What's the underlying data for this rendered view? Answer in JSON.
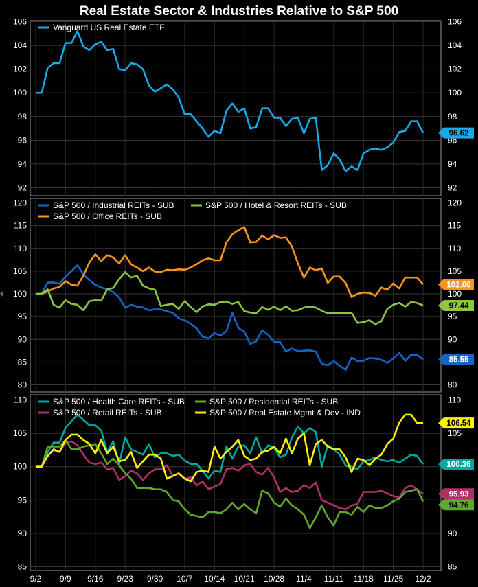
{
  "title": "Real Estate Sector & Industries Relative to S&P 500",
  "chart_data": {
    "type": "line",
    "x_ticks": [
      "9/2",
      "9/9",
      "9/16",
      "9/23",
      "9/30",
      "10/7",
      "10/14",
      "10/21",
      "10/28",
      "11/4",
      "11/11",
      "11/18",
      "11/25",
      "12/2"
    ],
    "panels": [
      {
        "ylim": [
          91.5,
          106.3
        ],
        "y_ticks": [
          92,
          94,
          96,
          98,
          100,
          102,
          104,
          106
        ],
        "grid": true,
        "legend": "top-left",
        "series": [
          {
            "name": "Vanguard US  Real Estate ETF",
            "color": "#19a8e8",
            "last_label": "96.62",
            "values": [
              100.0,
              100.0,
              102.1,
              102.5,
              102.5,
              104.2,
              104.2,
              105.2,
              103.9,
              103.6,
              104.1,
              104.3,
              103.6,
              103.7,
              102.0,
              101.9,
              102.5,
              102.4,
              102.0,
              100.6,
              100.1,
              100.4,
              100.7,
              100.3,
              99.6,
              98.2,
              98.2,
              97.6,
              97.0,
              96.3,
              96.8,
              96.6,
              98.5,
              99.1,
              98.4,
              98.7,
              97.0,
              97.1,
              98.7,
              98.7,
              97.9,
              97.9,
              97.2,
              97.8,
              97.9,
              96.6,
              97.8,
              97.9,
              93.5,
              93.9,
              94.9,
              94.4,
              93.4,
              93.8,
              93.5,
              94.9,
              95.2,
              95.3,
              95.2,
              95.4,
              95.8,
              96.7,
              96.8,
              97.6,
              97.6,
              96.62
            ]
          }
        ]
      },
      {
        "ylim": [
          79,
          121
        ],
        "y_ticks": [
          80,
          85,
          90,
          95,
          100,
          105,
          110,
          115,
          120
        ],
        "grid": true,
        "legend": "top-left",
        "series": [
          {
            "name": "S&P 500 / Industrial REITs - SUB",
            "color": "#1565c8",
            "last_label": "85.55",
            "values": [
              100.0,
              100.0,
              102.5,
              102.5,
              102.2,
              103.8,
              105.0,
              106.3,
              104.3,
              103.0,
              102.0,
              101.4,
              101.0,
              100.4,
              99.2,
              97.0,
              97.6,
              97.2,
              97.0,
              96.4,
              96.6,
              96.6,
              96.2,
              95.8,
              94.6,
              94.2,
              93.4,
              92.4,
              90.6,
              90.2,
              91.4,
              90.8,
              91.8,
              95.8,
              92.5,
              91.7,
              89.0,
              89.6,
              92.0,
              91.0,
              89.4,
              89.4,
              87.3,
              88.0,
              87.4,
              87.5,
              87.6,
              87.3,
              84.6,
              84.3,
              85.2,
              84.2,
              83.3,
              86.0,
              85.2,
              85.3,
              85.9,
              85.8,
              85.5,
              84.8,
              85.8,
              87.0,
              85.3,
              86.6,
              86.6,
              85.55
            ]
          },
          {
            "name": "S&P 500 / Office REITs - SUB",
            "color": "#f7941d",
            "last_label": "102.06",
            "values": [
              100.0,
              100.0,
              100.5,
              101.2,
              101.5,
              102.8,
              102.0,
              101.8,
              104.0,
              106.9,
              108.7,
              107.2,
              108.5,
              108.0,
              106.7,
              108.5,
              106.5,
              105.8,
              105.0,
              105.8,
              104.9,
              104.8,
              105.3,
              105.2,
              105.4,
              105.3,
              105.8,
              106.5,
              107.4,
              107.8,
              107.4,
              107.4,
              111.3,
              113.1,
              114.0,
              114.7,
              111.3,
              111.4,
              112.8,
              112.0,
              112.9,
              112.3,
              112.4,
              110.4,
              106.7,
              103.6,
              105.8,
              105.2,
              105.6,
              102.4,
              103.8,
              103.8,
              102.4,
              99.3,
              100.0,
              100.3,
              100.2,
              99.6,
              101.4,
              100.9,
              102.3,
              101.2,
              103.6,
              103.6,
              103.6,
              102.06
            ]
          },
          {
            "name": "S&P 500 / Hotel & Resort REITs - SUB",
            "color": "#8dc63f",
            "last_label": "97.44",
            "values": [
              100.0,
              100.0,
              101.0,
              97.6,
              97.0,
              98.6,
              97.8,
              97.6,
              96.4,
              98.4,
              98.6,
              98.5,
              101.0,
              101.3,
              103.2,
              104.8,
              103.6,
              104.0,
              101.8,
              101.2,
              100.9,
              97.3,
              97.6,
              97.8,
              96.7,
              98.4,
              97.1,
              96.0,
              97.2,
              97.7,
              97.6,
              98.2,
              98.3,
              97.8,
              98.2,
              96.2,
              95.9,
              95.7,
              97.1,
              96.5,
              97.2,
              96.4,
              97.3,
              96.3,
              96.4,
              97.0,
              97.2,
              97.0,
              96.3,
              95.7,
              95.8,
              95.8,
              95.8,
              95.8,
              93.6,
              93.8,
              94.2,
              93.3,
              94.0,
              96.7,
              97.6,
              98.0,
              97.2,
              98.2,
              98.0,
              97.44
            ]
          }
        ]
      },
      {
        "ylim": [
          84,
          111
        ],
        "y_ticks": [
          85,
          90,
          95,
          100,
          105,
          110
        ],
        "grid": true,
        "legend": "top-left",
        "series": [
          {
            "name": "S&P 500 / Health Care REITs - SUB",
            "color": "#00a99d",
            "last_label": "100.36",
            "values": [
              100.0,
              100.0,
              102.2,
              103.6,
              103.6,
              105.8,
              106.8,
              107.8,
              107.0,
              106.2,
              106.2,
              105.4,
              102.2,
              103.8,
              100.4,
              104.4,
              102.6,
              102.2,
              101.8,
              103.4,
              101.4,
              102.0,
              102.0,
              101.6,
              101.8,
              100.9,
              100.4,
              100.4,
              99.4,
              98.2,
              99.4,
              99.2,
              103.0,
              101.2,
              103.0,
              103.2,
              102.0,
              104.4,
              102.0,
              103.2,
              102.8,
              101.4,
              101.8,
              104.4,
              106.0,
              105.0,
              105.8,
              105.2,
              100.0,
              103.2,
              102.6,
              101.8,
              100.2,
              100.0,
              99.6,
              100.8,
              101.0,
              101.4,
              101.0,
              100.8,
              101.0,
              100.6,
              101.2,
              101.8,
              101.6,
              100.36
            ]
          },
          {
            "name": "S&P 500 / Retail REITs - SUB",
            "color": "#b0306a",
            "last_label": "95.93",
            "values": [
              100.0,
              100.0,
              101.6,
              102.4,
              102.2,
              103.6,
              103.8,
              103.2,
              101.8,
              100.6,
              100.4,
              100.6,
              99.6,
              99.8,
              98.0,
              98.6,
              99.4,
              99.0,
              98.0,
              99.0,
              99.6,
              99.6,
              100.2,
              98.6,
              99.0,
              98.2,
              98.4,
              97.2,
              97.8,
              96.6,
              97.0,
              97.4,
              99.6,
              99.8,
              99.4,
              100.2,
              100.4,
              99.2,
              98.8,
              99.8,
              98.4,
              96.2,
              96.8,
              96.2,
              96.4,
              97.2,
              96.8,
              97.6,
              95.0,
              94.6,
              94.2,
              93.8,
              93.6,
              94.2,
              94.4,
              96.2,
              96.2,
              96.2,
              96.4,
              96.0,
              95.6,
              95.4,
              96.8,
              97.2,
              96.6,
              95.93
            ]
          },
          {
            "name": "S&P 500 / Residential REITs - SUB",
            "color": "#5fa82e",
            "last_label": "94.76",
            "values": [
              100.0,
              100.0,
              103.0,
              103.0,
              103.0,
              104.0,
              102.6,
              102.6,
              103.0,
              103.2,
              103.4,
              102.0,
              100.4,
              101.2,
              100.2,
              99.0,
              98.2,
              96.8,
              96.8,
              96.8,
              96.6,
              96.6,
              96.2,
              95.0,
              94.8,
              93.6,
              92.8,
              92.6,
              92.4,
              93.2,
              93.2,
              93.0,
              93.6,
              94.6,
              93.6,
              94.4,
              93.6,
              93.0,
              96.4,
              96.0,
              94.6,
              94.0,
              95.2,
              94.2,
              93.6,
              92.8,
              90.8,
              92.4,
              94.2,
              92.4,
              91.2,
              93.2,
              93.2,
              92.8,
              94.0,
              93.2,
              94.2,
              93.8,
              93.8,
              94.2,
              94.8,
              95.2,
              96.2,
              96.4,
              96.6,
              94.76
            ]
          },
          {
            "name": "S&P 500 / Real Estate Mgmt & Dev - IND",
            "color": "#fff200",
            "last_label": "106.54",
            "values": [
              100.0,
              100.0,
              101.6,
              102.6,
              102.2,
              104.0,
              104.8,
              104.8,
              104.0,
              103.4,
              102.0,
              104.0,
              102.0,
              103.0,
              100.8,
              101.0,
              102.2,
              99.8,
              100.8,
              101.8,
              101.8,
              101.2,
              98.2,
              98.6,
              99.0,
              98.2,
              97.8,
              99.2,
              99.4,
              99.2,
              103.0,
              101.2,
              102.2,
              103.0,
              104.0,
              101.6,
              101.0,
              101.2,
              102.2,
              102.4,
              103.0,
              102.0,
              104.2,
              102.0,
              104.2,
              105.0,
              100.2,
              103.4,
              104.0,
              103.0,
              102.6,
              102.6,
              101.4,
              99.2,
              101.2,
              101.0,
              100.2,
              101.2,
              101.8,
              103.4,
              104.2,
              106.6,
              107.8,
              107.8,
              106.54,
              106.54
            ]
          }
        ]
      }
    ]
  }
}
